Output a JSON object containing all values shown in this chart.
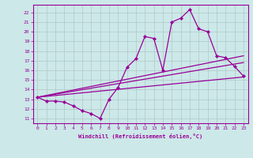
{
  "bg_color": "#cce8e8",
  "grid_color": "#b0c8c8",
  "line_color": "#990099",
  "xlabel": "Windchill (Refroidissement éolien,°C)",
  "xlim": [
    -0.5,
    23.5
  ],
  "ylim": [
    10.5,
    22.8
  ],
  "yticks": [
    11,
    12,
    13,
    14,
    15,
    16,
    17,
    18,
    19,
    20,
    21,
    22
  ],
  "xticks": [
    0,
    1,
    2,
    3,
    4,
    5,
    6,
    7,
    8,
    9,
    10,
    11,
    12,
    13,
    14,
    15,
    16,
    17,
    18,
    19,
    20,
    21,
    22,
    23
  ],
  "main_x": [
    0,
    1,
    2,
    3,
    4,
    5,
    6,
    7,
    8,
    9,
    10,
    11,
    12,
    13,
    14,
    15,
    16,
    17,
    18,
    19,
    20,
    21,
    22,
    23
  ],
  "main_y": [
    13.2,
    12.8,
    12.8,
    12.7,
    12.3,
    11.8,
    11.5,
    11.0,
    13.0,
    14.2,
    16.3,
    17.2,
    19.5,
    19.3,
    16.0,
    21.0,
    21.4,
    22.3,
    20.3,
    20.0,
    17.5,
    17.3,
    16.4,
    15.4
  ],
  "line1_x": [
    0,
    23
  ],
  "line1_y": [
    13.2,
    17.5
  ],
  "line2_x": [
    0,
    23
  ],
  "line2_y": [
    13.2,
    16.8
  ],
  "line3_x": [
    0,
    23
  ],
  "line3_y": [
    13.2,
    15.3
  ]
}
